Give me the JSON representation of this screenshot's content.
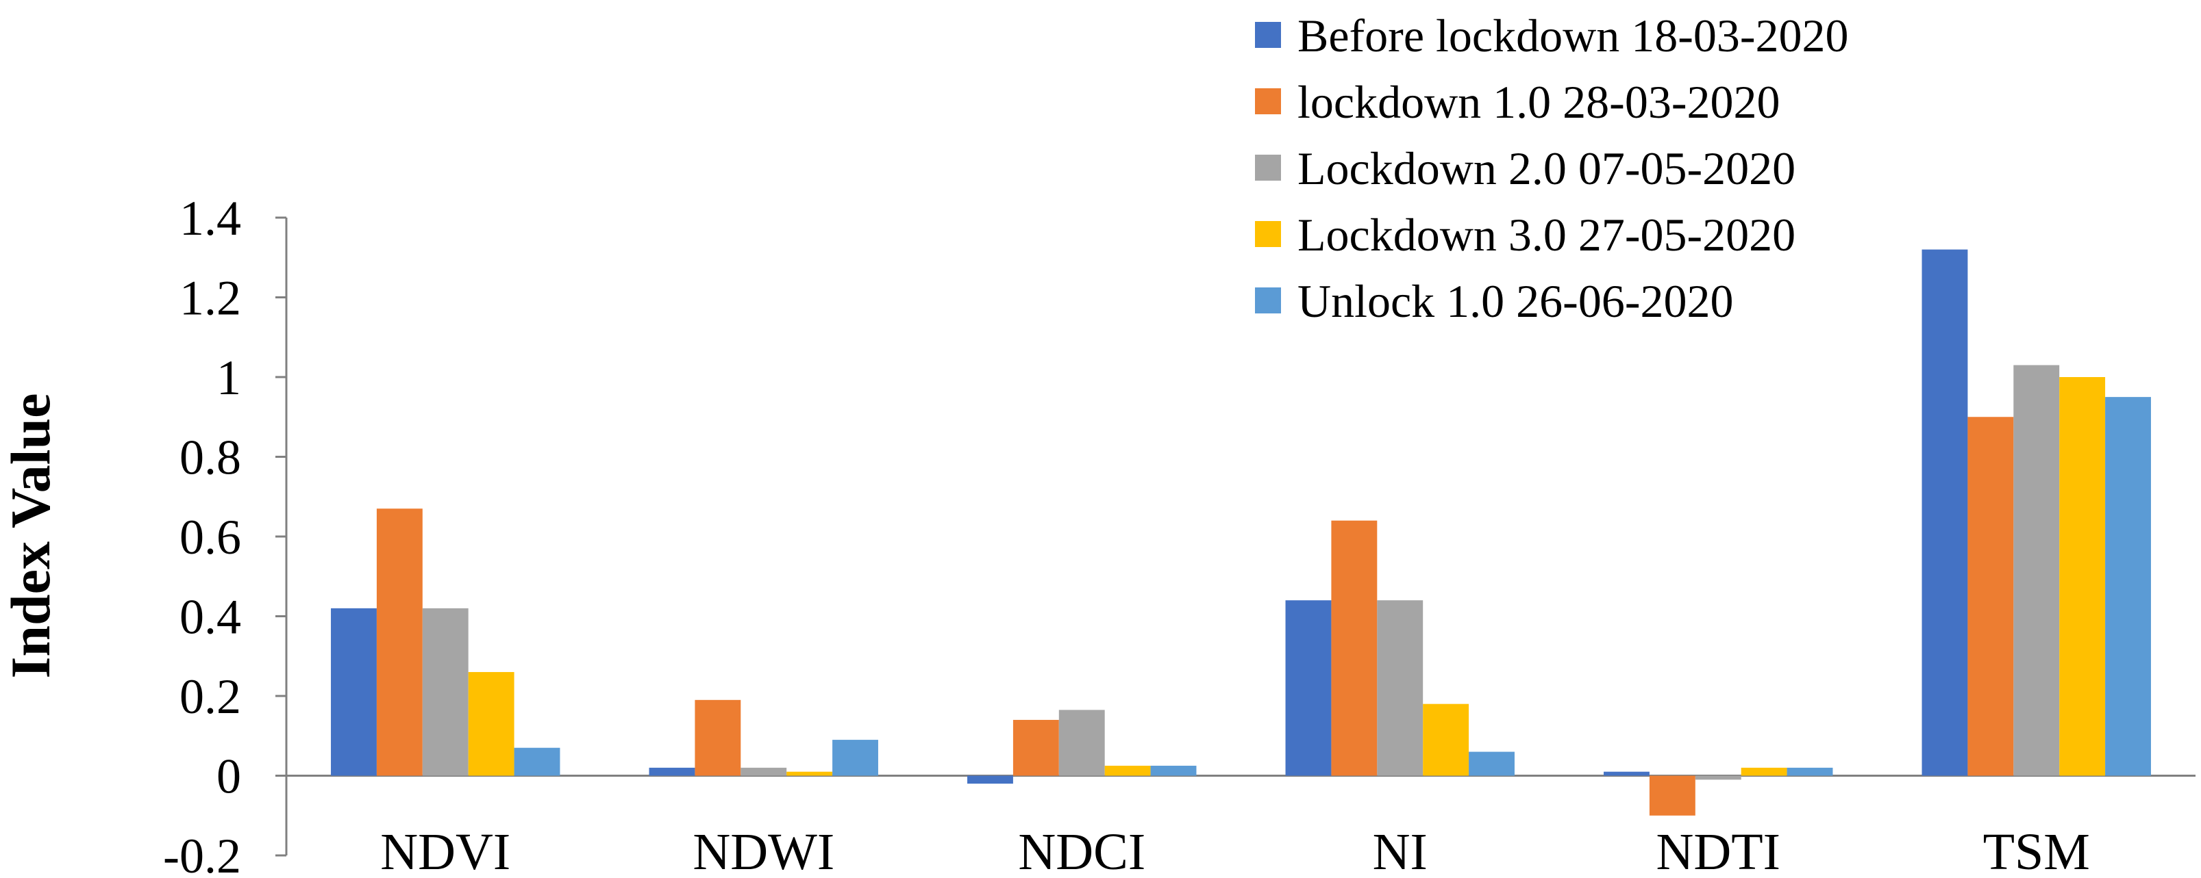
{
  "chart_data": {
    "type": "bar",
    "ylabel": "Index Value",
    "ylim": [
      -0.2,
      1.4
    ],
    "yticks": [
      "1.4",
      "1.2",
      "1",
      "0.8",
      "0.6",
      "0.4",
      "0.2",
      "0",
      "-0.2"
    ],
    "categories": [
      "NDVI",
      "NDWI",
      "NDCI",
      "NI",
      "NDTI",
      "TSM"
    ],
    "legend_position": "top-right",
    "series": [
      {
        "name": "Before lockdown 18-03-2020",
        "color": "#4472C4",
        "values": [
          0.42,
          0.02,
          -0.02,
          0.44,
          0.01,
          1.32
        ]
      },
      {
        "name": "lockdown 1.0 28-03-2020",
        "color": "#ED7D31",
        "values": [
          0.67,
          0.19,
          0.14,
          0.64,
          -0.1,
          0.9
        ]
      },
      {
        "name": "Lockdown 2.0 07-05-2020",
        "color": "#A5A5A5",
        "values": [
          0.42,
          0.02,
          0.165,
          0.44,
          -0.01,
          1.03
        ]
      },
      {
        "name": "Lockdown 3.0 27-05-2020",
        "color": "#FFC000",
        "values": [
          0.26,
          0.01,
          0.025,
          0.18,
          0.02,
          1.0
        ]
      },
      {
        "name": "Unlock 1.0 26-06-2020",
        "color": "#5B9BD5",
        "values": [
          0.07,
          0.09,
          0.025,
          0.06,
          0.02,
          0.95
        ]
      }
    ]
  }
}
